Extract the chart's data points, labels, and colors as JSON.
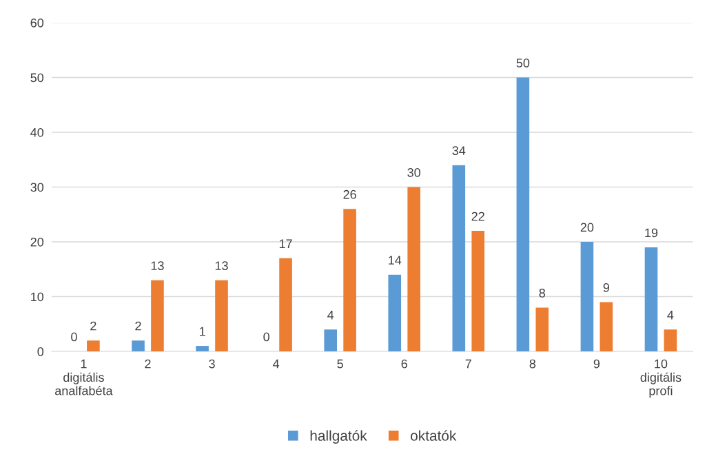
{
  "chart_data": {
    "type": "bar",
    "categories": [
      "1\ndigitális\nanalfabéta",
      "2",
      "3",
      "4",
      "5",
      "6",
      "7",
      "8",
      "9",
      "10\ndigitális\nprofi"
    ],
    "series": [
      {
        "name": "hallgatók",
        "color": "#5b9bd5",
        "values": [
          0,
          2,
          1,
          0,
          4,
          14,
          34,
          50,
          20,
          19
        ]
      },
      {
        "name": "oktatók",
        "color": "#ed7d31",
        "values": [
          2,
          13,
          13,
          17,
          26,
          30,
          22,
          8,
          9,
          4
        ]
      }
    ],
    "ylim": [
      0,
      60
    ],
    "yticks": [
      0,
      10,
      20,
      30,
      40,
      50,
      60
    ],
    "grid": "y",
    "legend": "bottom",
    "data_labels": true
  }
}
